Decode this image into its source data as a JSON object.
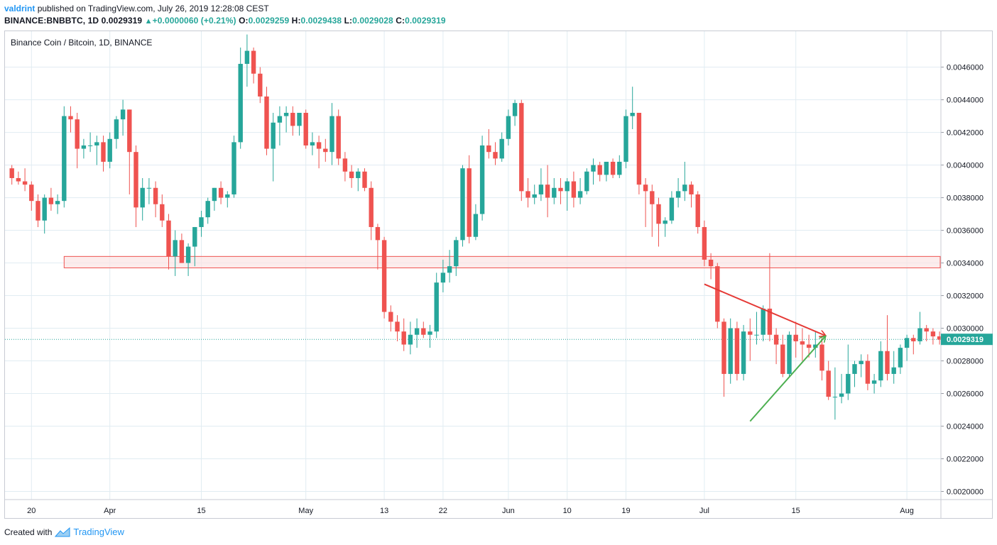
{
  "header": {
    "author": "valdrint",
    "published_text": "published on TradingView.com, July 26, 2019 12:28:08 CEST",
    "symbol": "BINANCE:BNBBTC, 1D",
    "last": "0.0029319",
    "change": "+0.0000060 (+0.21%)",
    "o_label": "O:",
    "o_value": "0.0029259",
    "h_label": "H:",
    "h_value": "0.0029438",
    "l_label": "L:",
    "l_value": "0.0029028",
    "c_label": "C:",
    "c_value": "0.0029319"
  },
  "legend": {
    "title": "Binance Coin / Bitcoin, 1D, BINANCE"
  },
  "footer": {
    "created_with": "Created with",
    "brand": "TradingView"
  },
  "colors": {
    "up": "#26a69a",
    "down": "#ef5350",
    "grid": "#e1ecf2",
    "zone_fill": "#fbe4e4",
    "zone_stroke": "#ef5350",
    "resistance_line": "#e53935",
    "support_line": "#4caf50",
    "last_price": "#26a69a"
  },
  "chart_data": {
    "type": "candlestick",
    "title": "Binance Coin / Bitcoin, 1D, BINANCE",
    "ylim": [
      0.00195,
      0.00482
    ],
    "y_ticks": [
      "0.0046000",
      "0.0044000",
      "0.0042000",
      "0.0040000",
      "0.0038000",
      "0.0036000",
      "0.0034000",
      "0.0032000",
      "0.0030000",
      "0.0028000",
      "0.0026000",
      "0.0024000",
      "0.0022000",
      "0.0020000"
    ],
    "x_ticks": [
      {
        "label": "20",
        "day": -11
      },
      {
        "label": "Apr",
        "day": 1
      },
      {
        "label": "15",
        "day": 15
      },
      {
        "label": "May",
        "day": 31
      },
      {
        "label": "13",
        "day": 43
      },
      {
        "label": "22",
        "day": 52
      },
      {
        "label": "Jun",
        "day": 62
      },
      {
        "label": "10",
        "day": 71
      },
      {
        "label": "19",
        "day": 80
      },
      {
        "label": "Jul",
        "day": 92
      },
      {
        "label": "15",
        "day": 106
      },
      {
        "label": "Aug",
        "day": 123
      }
    ],
    "last_price": 0.0029319,
    "last_price_label": "0.0029319",
    "start_day": -14,
    "candles": [
      [
        0.00398,
        0.004,
        0.00388,
        0.00392
      ],
      [
        0.00392,
        0.00396,
        0.00388,
        0.0039
      ],
      [
        0.0039,
        0.00398,
        0.00384,
        0.00388
      ],
      [
        0.00388,
        0.0039,
        0.00372,
        0.00378
      ],
      [
        0.00378,
        0.00382,
        0.00362,
        0.00366
      ],
      [
        0.00366,
        0.00382,
        0.00358,
        0.0038
      ],
      [
        0.0038,
        0.00386,
        0.00372,
        0.00376
      ],
      [
        0.00376,
        0.00382,
        0.0037,
        0.00378
      ],
      [
        0.00378,
        0.00436,
        0.00374,
        0.0043
      ],
      [
        0.0043,
        0.00436,
        0.0042,
        0.00428
      ],
      [
        0.00428,
        0.00432,
        0.00398,
        0.0041
      ],
      [
        0.0041,
        0.00416,
        0.00404,
        0.00412
      ],
      [
        0.00412,
        0.0042,
        0.00408,
        0.00412
      ],
      [
        0.00412,
        0.00418,
        0.004,
        0.00414
      ],
      [
        0.00414,
        0.00418,
        0.00396,
        0.00402
      ],
      [
        0.00402,
        0.0042,
        0.00398,
        0.00416
      ],
      [
        0.00416,
        0.0043,
        0.0041,
        0.00428
      ],
      [
        0.00428,
        0.0044,
        0.00418,
        0.00434
      ],
      [
        0.00434,
        0.00434,
        0.00382,
        0.00408
      ],
      [
        0.00408,
        0.00412,
        0.00362,
        0.00374
      ],
      [
        0.00374,
        0.00392,
        0.00366,
        0.00386
      ],
      [
        0.00386,
        0.00392,
        0.00376,
        0.00386
      ],
      [
        0.00386,
        0.0039,
        0.00368,
        0.00376
      ],
      [
        0.00376,
        0.00382,
        0.00362,
        0.00366
      ],
      [
        0.00366,
        0.0037,
        0.00336,
        0.00344
      ],
      [
        0.00344,
        0.0036,
        0.00332,
        0.00354
      ],
      [
        0.00354,
        0.00358,
        0.0034,
        0.0034
      ],
      [
        0.0034,
        0.00352,
        0.00332,
        0.0035
      ],
      [
        0.0035,
        0.00362,
        0.00338,
        0.00362
      ],
      [
        0.00362,
        0.00372,
        0.00356,
        0.00368
      ],
      [
        0.00368,
        0.0038,
        0.00364,
        0.00378
      ],
      [
        0.00378,
        0.00386,
        0.00372,
        0.00386
      ],
      [
        0.00386,
        0.0039,
        0.00376,
        0.0038
      ],
      [
        0.0038,
        0.00384,
        0.00374,
        0.00382
      ],
      [
        0.00382,
        0.00418,
        0.0038,
        0.00414
      ],
      [
        0.00414,
        0.00472,
        0.0041,
        0.00462
      ],
      [
        0.00462,
        0.0048,
        0.00448,
        0.0047
      ],
      [
        0.0047,
        0.00472,
        0.0045,
        0.00456
      ],
      [
        0.00456,
        0.0046,
        0.00438,
        0.00442
      ],
      [
        0.00442,
        0.00448,
        0.00406,
        0.0041
      ],
      [
        0.0041,
        0.00432,
        0.0039,
        0.00426
      ],
      [
        0.00426,
        0.00436,
        0.00412,
        0.0043
      ],
      [
        0.0043,
        0.00436,
        0.0042,
        0.00432
      ],
      [
        0.00432,
        0.00436,
        0.00418,
        0.00424
      ],
      [
        0.00424,
        0.00432,
        0.00418,
        0.00432
      ],
      [
        0.00432,
        0.00434,
        0.0041,
        0.00412
      ],
      [
        0.00412,
        0.0042,
        0.00406,
        0.00414
      ],
      [
        0.00414,
        0.00418,
        0.00398,
        0.0041
      ],
      [
        0.0041,
        0.00416,
        0.00402,
        0.00408
      ],
      [
        0.00408,
        0.00438,
        0.004,
        0.0043
      ],
      [
        0.0043,
        0.00434,
        0.004,
        0.00404
      ],
      [
        0.00404,
        0.00408,
        0.0039,
        0.00396
      ],
      [
        0.00396,
        0.004,
        0.00386,
        0.00392
      ],
      [
        0.00392,
        0.00398,
        0.00384,
        0.00396
      ],
      [
        0.00396,
        0.00398,
        0.00384,
        0.00386
      ],
      [
        0.00386,
        0.0039,
        0.00354,
        0.00362
      ],
      [
        0.00362,
        0.00364,
        0.00336,
        0.00354
      ],
      [
        0.00354,
        0.00356,
        0.00306,
        0.0031
      ],
      [
        0.0031,
        0.00314,
        0.00298,
        0.00304
      ],
      [
        0.00304,
        0.00308,
        0.00292,
        0.00298
      ],
      [
        0.00298,
        0.00306,
        0.00286,
        0.0029
      ],
      [
        0.0029,
        0.00304,
        0.00284,
        0.00296
      ],
      [
        0.00296,
        0.00306,
        0.00288,
        0.003
      ],
      [
        0.003,
        0.00304,
        0.00294,
        0.00296
      ],
      [
        0.00296,
        0.00302,
        0.00288,
        0.00298
      ],
      [
        0.00298,
        0.00334,
        0.00294,
        0.00328
      ],
      [
        0.00328,
        0.00342,
        0.00322,
        0.00334
      ],
      [
        0.00334,
        0.00348,
        0.00328,
        0.00338
      ],
      [
        0.00338,
        0.00356,
        0.00332,
        0.00354
      ],
      [
        0.00354,
        0.004,
        0.0035,
        0.00398
      ],
      [
        0.00398,
        0.00406,
        0.00352,
        0.00356
      ],
      [
        0.00356,
        0.00376,
        0.00354,
        0.0037
      ],
      [
        0.0037,
        0.00418,
        0.00366,
        0.00412
      ],
      [
        0.00412,
        0.00422,
        0.00404,
        0.00408
      ],
      [
        0.00408,
        0.00414,
        0.004,
        0.00404
      ],
      [
        0.00404,
        0.0042,
        0.00402,
        0.00416
      ],
      [
        0.00416,
        0.00434,
        0.00412,
        0.0043
      ],
      [
        0.0043,
        0.0044,
        0.00424,
        0.00438
      ],
      [
        0.00438,
        0.0044,
        0.00378,
        0.00384
      ],
      [
        0.00384,
        0.00392,
        0.00374,
        0.0038
      ],
      [
        0.0038,
        0.00388,
        0.00376,
        0.00382
      ],
      [
        0.00382,
        0.00398,
        0.00378,
        0.00388
      ],
      [
        0.00388,
        0.004,
        0.00368,
        0.0038
      ],
      [
        0.0038,
        0.00392,
        0.00376,
        0.00386
      ],
      [
        0.00386,
        0.00392,
        0.00376,
        0.00384
      ],
      [
        0.00384,
        0.00392,
        0.00372,
        0.0039
      ],
      [
        0.0039,
        0.00396,
        0.00374,
        0.0038
      ],
      [
        0.0038,
        0.00392,
        0.00376,
        0.00384
      ],
      [
        0.00384,
        0.00398,
        0.00382,
        0.00396
      ],
      [
        0.00396,
        0.00404,
        0.00388,
        0.004
      ],
      [
        0.004,
        0.00402,
        0.0039,
        0.00394
      ],
      [
        0.00394,
        0.00402,
        0.0039,
        0.00402
      ],
      [
        0.00402,
        0.00404,
        0.00392,
        0.00394
      ],
      [
        0.00394,
        0.00406,
        0.00392,
        0.00402
      ],
      [
        0.00402,
        0.00434,
        0.00398,
        0.0043
      ],
      [
        0.0043,
        0.00448,
        0.00422,
        0.00432
      ],
      [
        0.00432,
        0.00432,
        0.00382,
        0.00388
      ],
      [
        0.00388,
        0.00392,
        0.00362,
        0.00384
      ],
      [
        0.00384,
        0.00388,
        0.00356,
        0.00376
      ],
      [
        0.00376,
        0.0038,
        0.0035,
        0.00364
      ],
      [
        0.00364,
        0.00368,
        0.00356,
        0.00366
      ],
      [
        0.00366,
        0.00384,
        0.00364,
        0.0038
      ],
      [
        0.0038,
        0.00392,
        0.00374,
        0.00384
      ],
      [
        0.00384,
        0.00402,
        0.00378,
        0.00388
      ],
      [
        0.00388,
        0.0039,
        0.00374,
        0.00382
      ],
      [
        0.00382,
        0.00384,
        0.00358,
        0.00362
      ],
      [
        0.00362,
        0.00366,
        0.00338,
        0.00342
      ],
      [
        0.00342,
        0.00346,
        0.0033,
        0.00338
      ],
      [
        0.00338,
        0.0034,
        0.003,
        0.00304
      ],
      [
        0.00304,
        0.00306,
        0.00258,
        0.00272
      ],
      [
        0.00272,
        0.00306,
        0.00266,
        0.003
      ],
      [
        0.003,
        0.00304,
        0.00268,
        0.00272
      ],
      [
        0.00272,
        0.00302,
        0.00268,
        0.00298
      ],
      [
        0.00298,
        0.00306,
        0.0028,
        0.00296
      ],
      [
        0.00296,
        0.0031,
        0.0029,
        0.00296
      ],
      [
        0.00296,
        0.00314,
        0.00292,
        0.00312
      ],
      [
        0.00312,
        0.00346,
        0.00292,
        0.00296
      ],
      [
        0.00296,
        0.003,
        0.00278,
        0.0029
      ],
      [
        0.0029,
        0.00296,
        0.0027,
        0.00272
      ],
      [
        0.00272,
        0.00298,
        0.0027,
        0.00296
      ],
      [
        0.00296,
        0.00304,
        0.00282,
        0.00292
      ],
      [
        0.00292,
        0.003,
        0.0028,
        0.0029
      ],
      [
        0.0029,
        0.00296,
        0.00282,
        0.00288
      ],
      [
        0.00288,
        0.00298,
        0.00282,
        0.0029
      ],
      [
        0.0029,
        0.00294,
        0.00268,
        0.00274
      ],
      [
        0.00274,
        0.0028,
        0.00256,
        0.00258
      ],
      [
        0.00258,
        0.00276,
        0.00244,
        0.00258
      ],
      [
        0.00258,
        0.00272,
        0.00254,
        0.0026
      ],
      [
        0.0026,
        0.0029,
        0.00256,
        0.00272
      ],
      [
        0.00272,
        0.0028,
        0.00264,
        0.00278
      ],
      [
        0.00278,
        0.00284,
        0.0027,
        0.0028
      ],
      [
        0.0028,
        0.00284,
        0.00262,
        0.00266
      ],
      [
        0.00266,
        0.00272,
        0.0026,
        0.00268
      ],
      [
        0.00268,
        0.00292,
        0.00264,
        0.00286
      ],
      [
        0.00286,
        0.00308,
        0.00268,
        0.00272
      ],
      [
        0.00272,
        0.00286,
        0.00266,
        0.00276
      ],
      [
        0.00276,
        0.0029,
        0.00272,
        0.00288
      ],
      [
        0.00288,
        0.00296,
        0.0028,
        0.00294
      ],
      [
        0.00294,
        0.00296,
        0.00284,
        0.00292
      ],
      [
        0.00292,
        0.0031,
        0.0029,
        0.003
      ],
      [
        0.003,
        0.00302,
        0.00292,
        0.00298
      ],
      [
        0.00298,
        0.003,
        0.0029,
        0.00295
      ],
      [
        0.00295,
        0.00298,
        0.0029,
        0.00293
      ],
      [
        0.0029259,
        0.0029438,
        0.0029028,
        0.0029319
      ]
    ],
    "zone": {
      "low": 0.00337,
      "high": 0.00344,
      "from_day": -6
    },
    "trendlines": [
      {
        "name": "resistance",
        "from": [
          92,
          0.00327
        ],
        "to": [
          110.5,
          0.002955
        ]
      },
      {
        "name": "support",
        "from": [
          99,
          0.00243
        ],
        "to": [
          110.5,
          0.00295
        ]
      }
    ]
  }
}
